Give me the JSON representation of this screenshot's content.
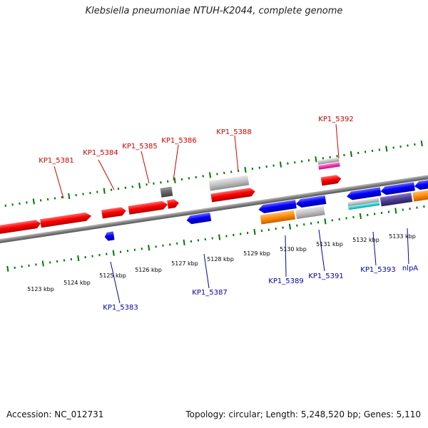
{
  "title": "Klebsiella pneumoniae NTUH-K2044, complete genome",
  "footer": {
    "accession": "Accession: NC_012731",
    "topology": "Topology: circular; Length: 5,248,520 bp; Genes: 5,110"
  },
  "colors": {
    "forward_gene": "#ff0000",
    "reverse_gene": "#0000ff",
    "pseudo_gene": "#c0c0c0",
    "rna_orange": "#ff8c00",
    "dark_gene": "#666666",
    "purple_gene": "#4b3d8f",
    "cyan_gene": "#00c0c0",
    "magenta_gene": "#ff00aa",
    "tick": "#007700",
    "backbone": "#808080"
  },
  "scale_labels": [
    "5123 kbp",
    "5124 kbp",
    "5125 kbp",
    "5126 kbp",
    "5127 kbp",
    "5128 kbp",
    "5129 kbp",
    "5130 kbp",
    "5131 kbp",
    "5132 kbp",
    "5133 kbp"
  ],
  "forward_labels": [
    "KP1_5381",
    "KP1_5384",
    "KP1_5385",
    "KP1_5386",
    "KP1_5388",
    "KP1_5392"
  ],
  "reverse_labels": [
    "KP1_5383",
    "KP1_5387",
    "KP1_5389",
    "KP1_5391",
    "KP1_5393",
    "nlpA"
  ]
}
